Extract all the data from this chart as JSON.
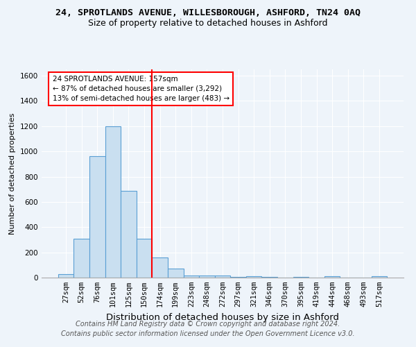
{
  "title1": "24, SPROTLANDS AVENUE, WILLESBOROUGH, ASHFORD, TN24 0AQ",
  "title2": "Size of property relative to detached houses in Ashford",
  "xlabel": "Distribution of detached houses by size in Ashford",
  "ylabel": "Number of detached properties",
  "categories": [
    "27sqm",
    "52sqm",
    "76sqm",
    "101sqm",
    "125sqm",
    "150sqm",
    "174sqm",
    "199sqm",
    "223sqm",
    "248sqm",
    "272sqm",
    "297sqm",
    "321sqm",
    "346sqm",
    "370sqm",
    "395sqm",
    "419sqm",
    "444sqm",
    "468sqm",
    "493sqm",
    "517sqm"
  ],
  "values": [
    30,
    310,
    960,
    1200,
    690,
    310,
    160,
    70,
    15,
    15,
    15,
    5,
    10,
    5,
    0,
    5,
    0,
    10,
    0,
    0,
    10
  ],
  "bar_color": "#c9dff0",
  "bar_edge_color": "#5a9fd4",
  "red_line_x": 5.5,
  "annotation_text": "24 SPROTLANDS AVENUE: 157sqm\n← 87% of detached houses are smaller (3,292)\n13% of semi-detached houses are larger (483) →",
  "annotation_box_color": "white",
  "annotation_box_edge_color": "red",
  "red_line_color": "red",
  "ylim": [
    0,
    1650
  ],
  "yticks": [
    0,
    200,
    400,
    600,
    800,
    1000,
    1200,
    1400,
    1600
  ],
  "footer1": "Contains HM Land Registry data © Crown copyright and database right 2024.",
  "footer2": "Contains public sector information licensed under the Open Government Licence v3.0.",
  "bg_color": "#eef4fa",
  "plot_bg_color": "#eef4fa",
  "grid_color": "white",
  "title1_fontsize": 9.5,
  "title2_fontsize": 9,
  "xlabel_fontsize": 9.5,
  "ylabel_fontsize": 8,
  "tick_fontsize": 7.5,
  "footer_fontsize": 7
}
